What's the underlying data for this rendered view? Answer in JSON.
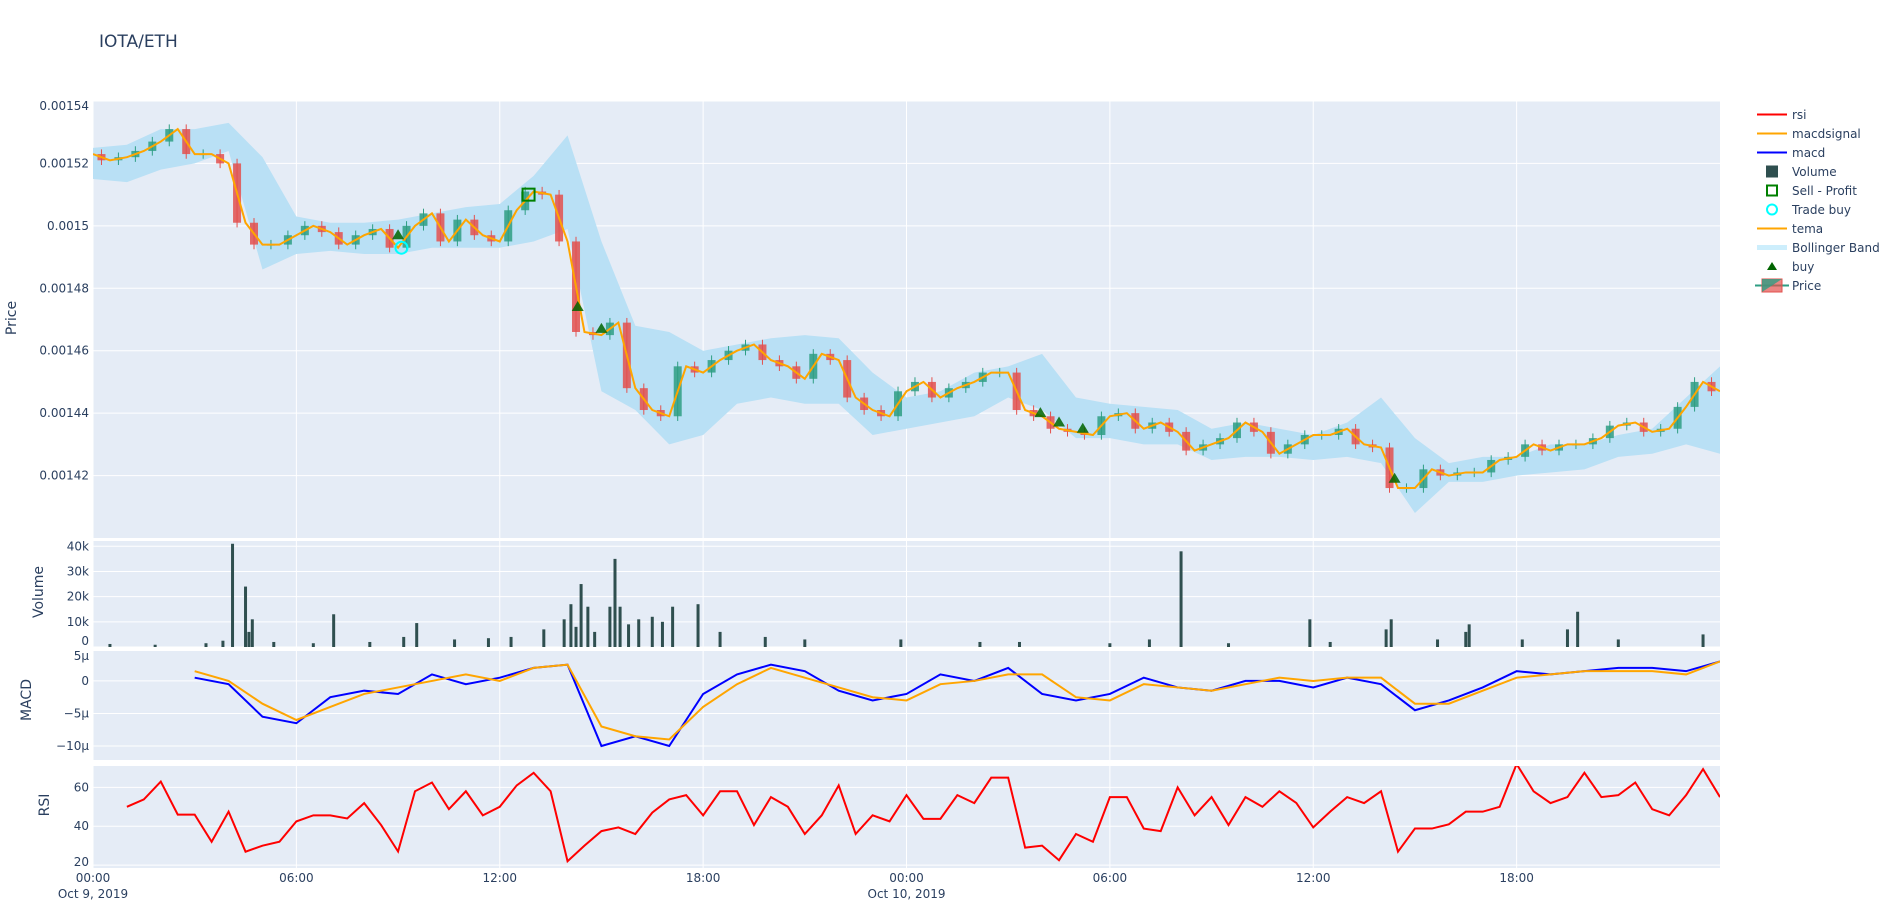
{
  "title": "IOTA/ETH",
  "legend": [
    {
      "label": "rsi",
      "symbol": "line",
      "color": "#ff0000"
    },
    {
      "label": "macdsignal",
      "symbol": "line",
      "color": "#ffa500"
    },
    {
      "label": "macd",
      "symbol": "line",
      "color": "#0000ff"
    },
    {
      "label": "Volume",
      "symbol": "square-filled",
      "color": "#2f4f4f"
    },
    {
      "label": "Sell - Profit",
      "symbol": "square-open",
      "color": "#008000"
    },
    {
      "label": "Trade buy",
      "symbol": "circle-open",
      "color": "#00ffff"
    },
    {
      "label": "tema",
      "symbol": "line",
      "color": "#ffa500"
    },
    {
      "label": "Bollinger Band",
      "symbol": "band",
      "color": "#cdeefc"
    },
    {
      "label": "buy",
      "symbol": "triangle-up",
      "color": "#006400"
    },
    {
      "label": "Price",
      "symbol": "candlestick",
      "color": "#2e9e83"
    }
  ],
  "chart_data": {
    "type": "candlestick-multi-panel",
    "grid": true,
    "legend_position": "right",
    "xaxis": {
      "range": [
        "2019-10-09T00:00",
        "2019-10-11T00:00"
      ],
      "ticks": [
        {
          "at": "2019-10-09T00:00",
          "label": "00:00",
          "sublabel": "Oct 9, 2019"
        },
        {
          "at": "2019-10-09T06:00",
          "label": "06:00"
        },
        {
          "at": "2019-10-09T12:00",
          "label": "12:00"
        },
        {
          "at": "2019-10-09T18:00",
          "label": "18:00"
        },
        {
          "at": "2019-10-10T00:00",
          "label": "00:00",
          "sublabel": "Oct 10, 2019"
        },
        {
          "at": "2019-10-10T06:00",
          "label": "06:00"
        },
        {
          "at": "2019-10-10T12:00",
          "label": "12:00"
        },
        {
          "at": "2019-10-10T18:00",
          "label": "18:00"
        }
      ]
    },
    "price_panel": {
      "ylabel": "Price",
      "ylim": [
        0.0014,
        0.00154
      ],
      "yticks": [
        {
          "v": 0.00142,
          "label": "0.00142"
        },
        {
          "v": 0.00144,
          "label": "0.00144"
        },
        {
          "v": 0.00146,
          "label": "0.00146"
        },
        {
          "v": 0.00148,
          "label": "0.00148"
        },
        {
          "v": 0.0015,
          "label": "0.0015"
        },
        {
          "v": 0.00152,
          "label": "0.00152"
        },
        {
          "v": 0.00154,
          "label": "0.00154"
        }
      ],
      "close": {
        "start": "2019-10-09T00:00",
        "interval_minutes": 30,
        "values": [
          0.001523,
          0.001521,
          0.001522,
          0.001524,
          0.001527,
          0.001531,
          0.001523,
          0.001523,
          0.00152,
          0.001501,
          0.001494,
          0.001494,
          0.001497,
          0.0015,
          0.001498,
          0.001494,
          0.001497,
          0.001499,
          0.001493,
          0.0015,
          0.001504,
          0.001495,
          0.001502,
          0.001497,
          0.001495,
          0.001505,
          0.001511,
          0.00151,
          0.001495,
          0.001466,
          0.001465,
          0.001469,
          0.001448,
          0.001441,
          0.001439,
          0.001455,
          0.001453,
          0.001457,
          0.00146,
          0.001462,
          0.001457,
          0.001455,
          0.001451,
          0.001459,
          0.001457,
          0.001445,
          0.001441,
          0.001439,
          0.001447,
          0.00145,
          0.001445,
          0.001448,
          0.00145,
          0.001453,
          0.001453,
          0.001441,
          0.001439,
          0.001435,
          0.001434,
          0.001433,
          0.001439,
          0.00144,
          0.001435,
          0.001437,
          0.001434,
          0.001428,
          0.00143,
          0.001432,
          0.001437,
          0.001434,
          0.001427,
          0.00143,
          0.001433,
          0.001433,
          0.001435,
          0.00143,
          0.001429,
          0.001416,
          0.001416,
          0.001422,
          0.00142,
          0.001421,
          0.001421,
          0.001425,
          0.001426,
          0.00143,
          0.001428,
          0.00143,
          0.00143,
          0.001432,
          0.001436,
          0.001437,
          0.001434,
          0.001435,
          0.001442,
          0.00145,
          0.001447
        ]
      },
      "bollinger": {
        "start": "2019-10-09T00:00",
        "interval_minutes": 60,
        "upper": [
          0.001525,
          0.001526,
          0.001531,
          0.001531,
          0.001533,
          0.001522,
          0.001503,
          0.001501,
          0.001501,
          0.001502,
          0.001504,
          0.001506,
          0.001507,
          0.001516,
          0.001529,
          0.001495,
          0.001468,
          0.001466,
          0.00146,
          0.001462,
          0.001464,
          0.001465,
          0.001464,
          0.001453,
          0.001445,
          0.001447,
          0.001453,
          0.001455,
          0.001459,
          0.001445,
          0.001443,
          0.001442,
          0.001441,
          0.001435,
          0.001437,
          0.001435,
          0.001433,
          0.001437,
          0.001445,
          0.001432,
          0.001424,
          0.001426,
          0.001426,
          0.00143,
          0.00143,
          0.001433,
          0.001435,
          0.001445,
          0.001455
        ],
        "lower": [
          0.001515,
          0.001514,
          0.001518,
          0.00152,
          0.001524,
          0.001486,
          0.001491,
          0.001492,
          0.001491,
          0.001491,
          0.001493,
          0.001493,
          0.001493,
          0.001495,
          0.001499,
          0.001447,
          0.001441,
          0.00143,
          0.001433,
          0.001443,
          0.001445,
          0.001443,
          0.001443,
          0.001433,
          0.001435,
          0.001437,
          0.001439,
          0.001445,
          0.001441,
          0.001432,
          0.001432,
          0.00143,
          0.00143,
          0.001425,
          0.001426,
          0.001426,
          0.001425,
          0.001426,
          0.001424,
          0.001408,
          0.001418,
          0.001418,
          0.00142,
          0.001421,
          0.001422,
          0.001426,
          0.001427,
          0.00143,
          0.001427
        ]
      },
      "buy_markers": [
        {
          "t": "2019-10-09T09:00",
          "price": 0.001497
        },
        {
          "t": "2019-10-09T14:18",
          "price": 0.001474
        },
        {
          "t": "2019-10-09T15:00",
          "price": 0.001467
        },
        {
          "t": "2019-10-10T03:57",
          "price": 0.00144
        },
        {
          "t": "2019-10-10T04:30",
          "price": 0.001437
        },
        {
          "t": "2019-10-10T05:12",
          "price": 0.001435
        },
        {
          "t": "2019-10-10T14:24",
          "price": 0.001419
        }
      ],
      "trade_buy": [
        {
          "t": "2019-10-09T09:06",
          "price": 0.001493
        }
      ],
      "sell_profit": [
        {
          "t": "2019-10-09T12:51",
          "price": 0.00151
        }
      ]
    },
    "volume_panel": {
      "ylabel": "Volume",
      "ylim": [
        0,
        42100
      ],
      "yticks": [
        {
          "v": 0,
          "label": "0"
        },
        {
          "v": 10000,
          "label": "10k"
        },
        {
          "v": 20000,
          "label": "20k"
        },
        {
          "v": 30000,
          "label": "30k"
        },
        {
          "v": 40000,
          "label": "40k"
        }
      ],
      "bars": [
        [
          "2019-10-09T00:30",
          1200
        ],
        [
          "2019-10-09T01:50",
          900
        ],
        [
          "2019-10-09T03:20",
          1500
        ],
        [
          "2019-10-09T03:50",
          2500
        ],
        [
          "2019-10-09T04:07",
          41000
        ],
        [
          "2019-10-09T04:30",
          24000
        ],
        [
          "2019-10-09T04:36",
          6000
        ],
        [
          "2019-10-09T04:42",
          11000
        ],
        [
          "2019-10-09T05:20",
          2000
        ],
        [
          "2019-10-09T06:30",
          1500
        ],
        [
          "2019-10-09T07:06",
          13000
        ],
        [
          "2019-10-09T08:10",
          2000
        ],
        [
          "2019-10-09T09:10",
          4000
        ],
        [
          "2019-10-09T09:33",
          9500
        ],
        [
          "2019-10-09T10:40",
          3000
        ],
        [
          "2019-10-09T11:40",
          3500
        ],
        [
          "2019-10-09T12:20",
          4000
        ],
        [
          "2019-10-09T13:18",
          7000
        ],
        [
          "2019-10-09T13:54",
          11000
        ],
        [
          "2019-10-09T14:06",
          17000
        ],
        [
          "2019-10-09T14:15",
          8000
        ],
        [
          "2019-10-09T14:24",
          25000
        ],
        [
          "2019-10-09T14:36",
          16000
        ],
        [
          "2019-10-09T14:48",
          6000
        ],
        [
          "2019-10-09T15:15",
          16000
        ],
        [
          "2019-10-09T15:24",
          35000
        ],
        [
          "2019-10-09T15:33",
          16000
        ],
        [
          "2019-10-09T15:48",
          9000
        ],
        [
          "2019-10-09T16:06",
          11000
        ],
        [
          "2019-10-09T16:30",
          12000
        ],
        [
          "2019-10-09T16:48",
          10000
        ],
        [
          "2019-10-09T17:06",
          16000
        ],
        [
          "2019-10-09T17:51",
          17000
        ],
        [
          "2019-10-09T18:30",
          6000
        ],
        [
          "2019-10-09T19:50",
          4000
        ],
        [
          "2019-10-09T21:00",
          3000
        ],
        [
          "2019-10-09T23:50",
          3000
        ],
        [
          "2019-10-10T02:10",
          2000
        ],
        [
          "2019-10-10T03:20",
          2000
        ],
        [
          "2019-10-10T06:00",
          1500
        ],
        [
          "2019-10-10T07:10",
          3000
        ],
        [
          "2019-10-10T08:06",
          38000
        ],
        [
          "2019-10-10T09:30",
          1500
        ],
        [
          "2019-10-10T11:54",
          11000
        ],
        [
          "2019-10-10T12:30",
          2000
        ],
        [
          "2019-10-10T14:09",
          7000
        ],
        [
          "2019-10-10T14:18",
          11000
        ],
        [
          "2019-10-10T15:40",
          3000
        ],
        [
          "2019-10-10T16:30",
          6000
        ],
        [
          "2019-10-10T16:36",
          9000
        ],
        [
          "2019-10-10T18:10",
          3000
        ],
        [
          "2019-10-10T19:30",
          7000
        ],
        [
          "2019-10-10T19:48",
          14000
        ],
        [
          "2019-10-10T21:00",
          3000
        ],
        [
          "2019-10-10T23:30",
          5000
        ]
      ]
    },
    "macd_panel": {
      "ylabel": "MACD",
      "y_unit": "µ",
      "ylim": [
        -12.15,
        4.6
      ],
      "yticks": [
        {
          "v": 5,
          "label": "5µ"
        },
        {
          "v": 0,
          "label": "0"
        },
        {
          "v": -5,
          "label": "−5µ"
        },
        {
          "v": -10,
          "label": "−10µ"
        }
      ],
      "start": "2019-10-09T03:00",
      "interval_minutes": 60,
      "series": [
        {
          "name": "macd",
          "color": "#0000ff",
          "values": [
            0.5,
            -0.5,
            -5.5,
            -6.5,
            -2.5,
            -1.5,
            -2,
            1,
            -0.5,
            0.5,
            2,
            2.5,
            -10,
            -8.5,
            -10,
            -2,
            1,
            2.5,
            1.5,
            -1.5,
            -3,
            -2,
            1,
            0,
            2,
            -2,
            -3,
            -2,
            0.5,
            -1,
            -1.5,
            0,
            0,
            -1,
            0.5,
            -0.5,
            -4.5,
            -3,
            -1,
            1.5,
            1,
            1.5,
            2,
            2,
            1.5,
            3
          ]
        },
        {
          "name": "macdsignal",
          "color": "#ffa500",
          "values": [
            1.5,
            0,
            -3.5,
            -6,
            -4,
            -2,
            -1,
            0,
            1,
            0,
            2,
            2.5,
            -7,
            -8.5,
            -9,
            -4,
            -0.5,
            2,
            0.5,
            -1,
            -2.5,
            -3,
            -0.5,
            0,
            1,
            1,
            -2.5,
            -3,
            -0.5,
            -1,
            -1.5,
            -0.5,
            0.5,
            0,
            0.5,
            0.5,
            -3.5,
            -3.5,
            -1.5,
            0.5,
            1,
            1.5,
            1.5,
            1.5,
            1,
            3
          ]
        }
      ]
    },
    "rsi_panel": {
      "ylabel": "RSI",
      "ylim": [
        18.5,
        71
      ],
      "yticks": [
        {
          "v": 20,
          "label": "20"
        },
        {
          "v": 40,
          "label": "40"
        },
        {
          "v": 60,
          "label": "60"
        }
      ],
      "start": "2019-10-09T01:00",
      "interval_minutes": 30,
      "series": [
        {
          "name": "rsi",
          "color": "#ff0000",
          "values": [
            50,
            53.8,
            63,
            46,
            46,
            32,
            47.5,
            26.9,
            30,
            32,
            42.5,
            45.6,
            45.6,
            44,
            51.9,
            40.6,
            27,
            58,
            62.5,
            48.8,
            58,
            45.6,
            50,
            61,
            67.5,
            58,
            22,
            30,
            37.5,
            39.4,
            36,
            47,
            53.8,
            56,
            45.6,
            58,
            58,
            40.6,
            55,
            50,
            36,
            45.6,
            61,
            36,
            45.6,
            42.5,
            56,
            43.8,
            43.8,
            56,
            51.9,
            65,
            65,
            29,
            30,
            22.5,
            36,
            32,
            55,
            55,
            38.8,
            37.5,
            60,
            45.6,
            55,
            40.6,
            55,
            50,
            58,
            52,
            39.4,
            47.5,
            55,
            51.9,
            58,
            26.9,
            38.8,
            38.8,
            41,
            47.5,
            47.5,
            50,
            72,
            58,
            51.9,
            55,
            67.5,
            55,
            56,
            62.5,
            48.8,
            45.6,
            56,
            69.4,
            55
          ]
        }
      ]
    },
    "colors": {
      "increasing": "#2e9e83",
      "decreasing": "#e3504d",
      "tema": "#ffa500",
      "bollinger_fill": "#b9e0f5",
      "volume": "#2f4f4f",
      "plot_bg": "#e5ecf6",
      "grid": "#ffffff"
    }
  }
}
